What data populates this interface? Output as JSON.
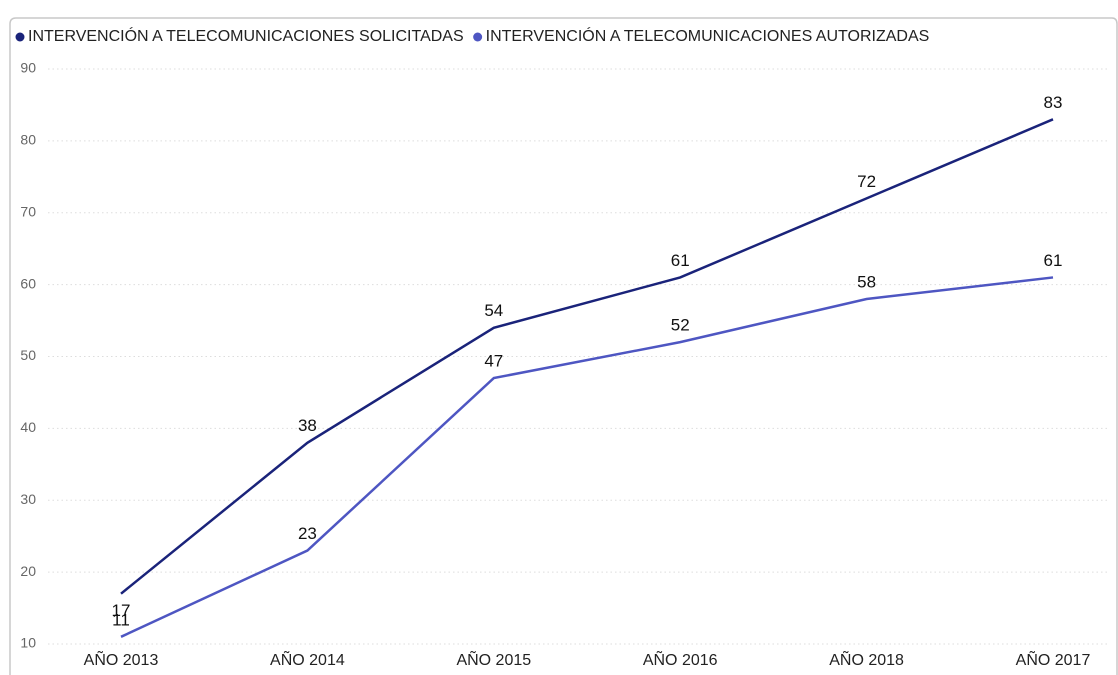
{
  "chart_data": {
    "type": "line",
    "categories": [
      "AÑO 2013",
      "AÑO 2014",
      "AÑO 2015",
      "AÑO 2016",
      "AÑO 2018",
      "AÑO 2017"
    ],
    "series": [
      {
        "name": "INTERVENCIÓN A TELECOMUNICACIONES SOLICITADAS",
        "color": "#1a237a",
        "values": [
          17,
          38,
          54,
          61,
          72,
          83
        ]
      },
      {
        "name": "INTERVENCIÓN A TELECOMUNICACIONES AUTORIZADAS",
        "color": "#4e56c2",
        "values": [
          11,
          23,
          47,
          52,
          58,
          61
        ]
      }
    ],
    "ylim": [
      10,
      90
    ],
    "yticks": [
      10,
      20,
      30,
      40,
      50,
      60,
      70,
      80,
      90
    ],
    "grid": true,
    "legend": "top-left"
  }
}
